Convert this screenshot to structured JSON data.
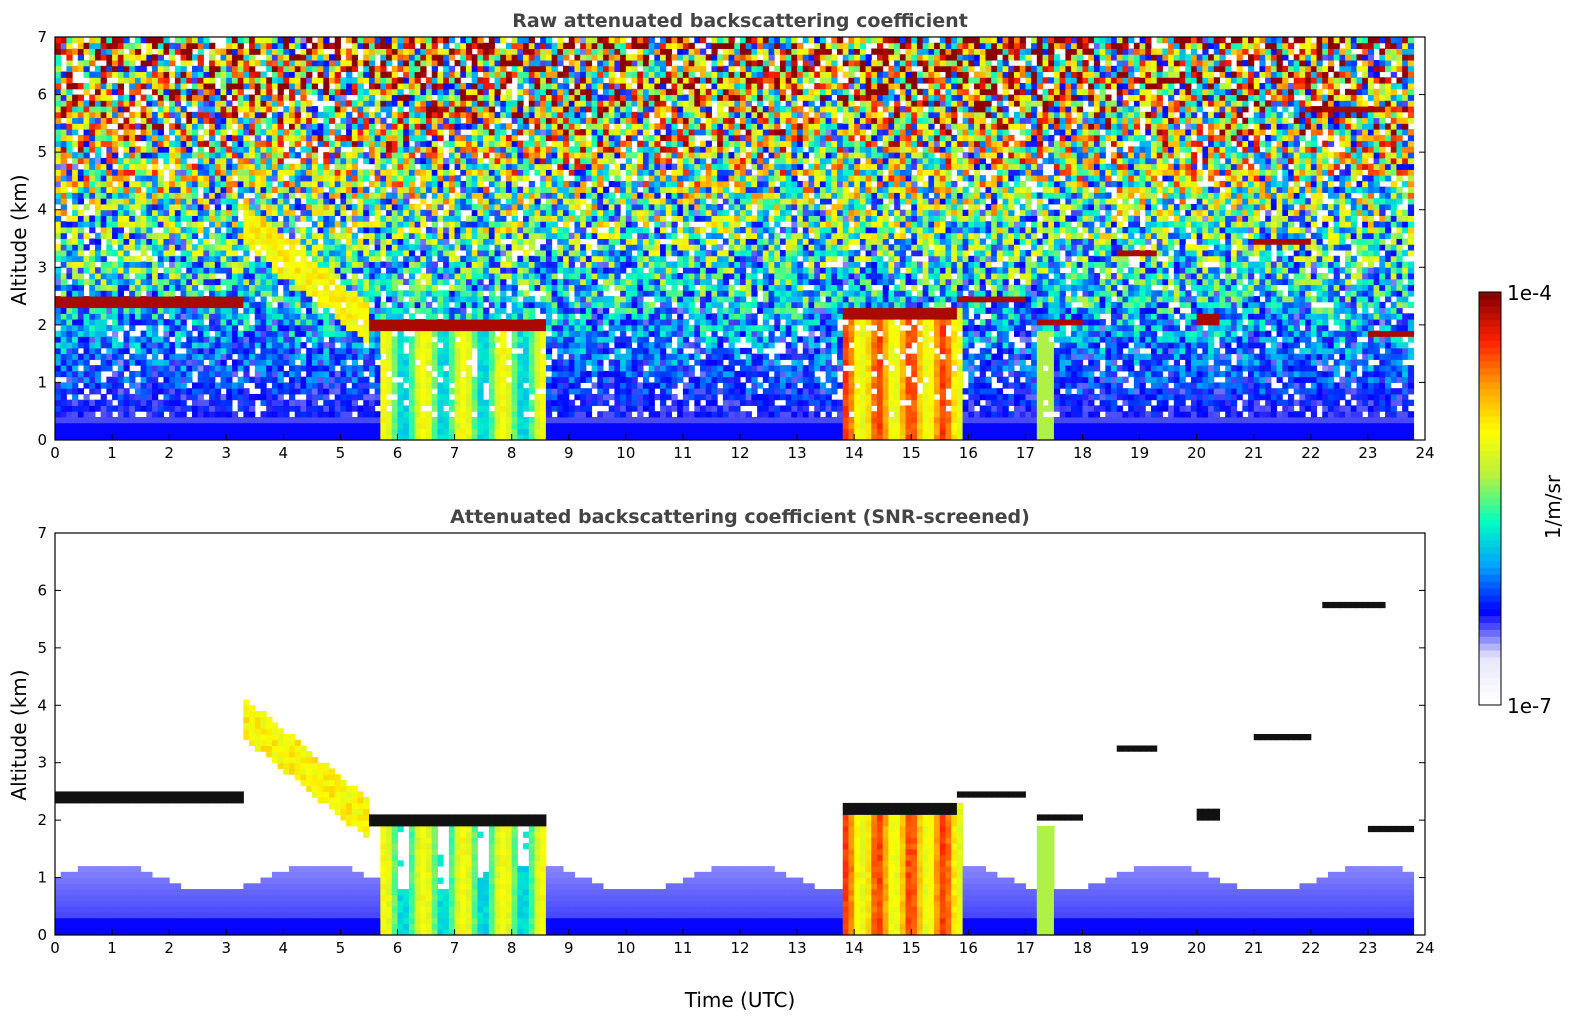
{
  "chart_data": [
    {
      "type": "heatmap",
      "title": "Raw attenuated backscattering coefficient",
      "xlabel": "",
      "ylabel": "Altitude (km)",
      "xlim": [
        0,
        24
      ],
      "ylim": [
        0,
        7
      ],
      "x_ticks": [
        "0",
        "1",
        "2",
        "3",
        "4",
        "5",
        "6",
        "7",
        "8",
        "9",
        "10",
        "11",
        "12",
        "13",
        "14",
        "15",
        "16",
        "17",
        "18",
        "19",
        "20",
        "21",
        "22",
        "23",
        "24"
      ],
      "y_ticks": [
        "0",
        "1",
        "2",
        "3",
        "4",
        "5",
        "6",
        "7"
      ],
      "screened": false,
      "features": {
        "cloud_layers": [
          {
            "t0": 0.0,
            "t1": 3.3,
            "alt": 2.4
          },
          {
            "t0": 5.5,
            "t1": 8.6,
            "alt": 2.0
          },
          {
            "t0": 13.8,
            "t1": 15.8,
            "alt": 2.2
          },
          {
            "t0": 15.8,
            "t1": 17.0,
            "alt": 2.45
          },
          {
            "t0": 17.2,
            "t1": 18.0,
            "alt": 2.05
          },
          {
            "t0": 18.6,
            "t1": 19.3,
            "alt": 3.25
          },
          {
            "t0": 20.0,
            "t1": 20.4,
            "alt": 2.1
          },
          {
            "t0": 21.0,
            "t1": 22.0,
            "alt": 3.45
          },
          {
            "t0": 22.2,
            "t1": 23.3,
            "alt": 5.75
          },
          {
            "t0": 23.0,
            "t1": 23.8,
            "alt": 1.85
          }
        ],
        "aerosol_columns": [
          {
            "t0": 5.65,
            "t1": 8.6,
            "top": 2.0
          },
          {
            "t0": 13.8,
            "t1": 15.9,
            "top": 2.3
          },
          {
            "t0": 17.2,
            "t1": 17.5,
            "top": 1.9
          }
        ],
        "ascending_plume": {
          "t0": 3.3,
          "t1": 5.5,
          "alt_start": 3.8,
          "alt_end": 2.0
        }
      }
    },
    {
      "type": "heatmap",
      "title": "Attenuated backscattering coefficient (SNR-screened)",
      "xlabel": "Time (UTC)",
      "ylabel": "Altitude (km)",
      "xlim": [
        0,
        24
      ],
      "ylim": [
        0,
        7
      ],
      "x_ticks": [
        "0",
        "1",
        "2",
        "3",
        "4",
        "5",
        "6",
        "7",
        "8",
        "9",
        "10",
        "11",
        "12",
        "13",
        "14",
        "15",
        "16",
        "17",
        "18",
        "19",
        "20",
        "21",
        "22",
        "23",
        "24"
      ],
      "y_ticks": [
        "0",
        "1",
        "2",
        "3",
        "4",
        "5",
        "6",
        "7"
      ],
      "screened": true
    }
  ],
  "colorbar": {
    "label": "1/m/sr",
    "max_label": "1e-4",
    "min_label": "1e-7",
    "scale": "log",
    "range": [
      1e-07,
      0.0001
    ]
  },
  "colors": {
    "colormap": [
      "#ffffff",
      "#e6e6fa",
      "#0000ff",
      "#00a0ff",
      "#00ffc0",
      "#b8f040",
      "#ffff00",
      "#ffa000",
      "#ff2000",
      "#8b0000"
    ],
    "cloud_dark": "#8b1a00"
  }
}
